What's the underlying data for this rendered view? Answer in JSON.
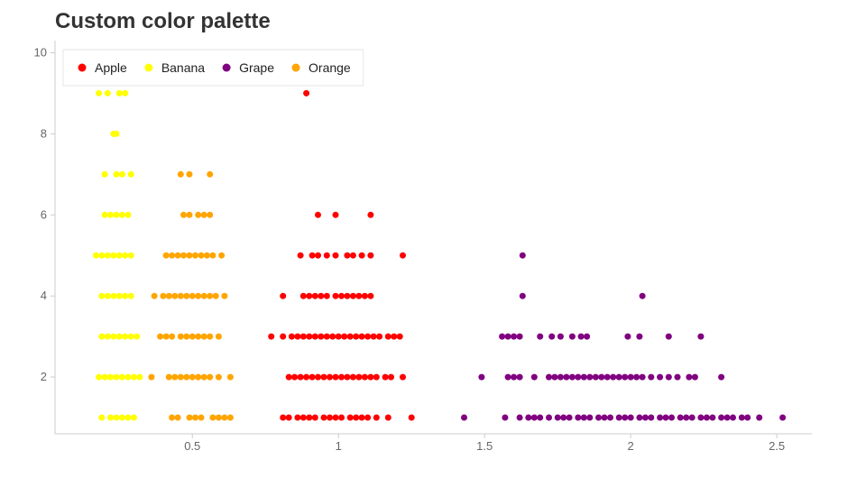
{
  "chart_data": {
    "type": "scatter",
    "title": "Custom color palette",
    "xlabel": "",
    "ylabel": "",
    "xlim": [
      0.03,
      2.62
    ],
    "ylim": [
      0.6,
      10.3
    ],
    "x_ticks": [
      0.5,
      1,
      1.5,
      2,
      2.5
    ],
    "x_tick_labels": [
      "0.5",
      "1",
      "1.5",
      "2",
      "2.5"
    ],
    "y_ticks": [
      2,
      4,
      6,
      8,
      10
    ],
    "y_tick_labels": [
      "2",
      "4",
      "6",
      "8",
      "10"
    ],
    "grid": false,
    "legend_position": "top-left",
    "series": [
      {
        "name": "Apple",
        "color": "#ff0000",
        "points": [
          [
            0.89,
            9
          ],
          [
            0.93,
            6
          ],
          [
            0.99,
            6
          ],
          [
            1.11,
            6
          ],
          [
            0.87,
            5
          ],
          [
            0.91,
            5
          ],
          [
            0.93,
            5
          ],
          [
            0.96,
            5
          ],
          [
            0.99,
            5
          ],
          [
            1.03,
            5
          ],
          [
            1.05,
            5
          ],
          [
            1.08,
            5
          ],
          [
            1.11,
            5
          ],
          [
            1.22,
            5
          ],
          [
            0.81,
            4
          ],
          [
            0.88,
            4
          ],
          [
            0.9,
            4
          ],
          [
            0.92,
            4
          ],
          [
            0.94,
            4
          ],
          [
            0.96,
            4
          ],
          [
            0.99,
            4
          ],
          [
            1.01,
            4
          ],
          [
            1.03,
            4
          ],
          [
            1.05,
            4
          ],
          [
            1.07,
            4
          ],
          [
            1.09,
            4
          ],
          [
            1.11,
            4
          ],
          [
            0.77,
            3
          ],
          [
            0.81,
            3
          ],
          [
            0.84,
            3
          ],
          [
            0.86,
            3
          ],
          [
            0.88,
            3
          ],
          [
            0.9,
            3
          ],
          [
            0.92,
            3
          ],
          [
            0.94,
            3
          ],
          [
            0.96,
            3
          ],
          [
            0.98,
            3
          ],
          [
            1.0,
            3
          ],
          [
            1.02,
            3
          ],
          [
            1.04,
            3
          ],
          [
            1.06,
            3
          ],
          [
            1.08,
            3
          ],
          [
            1.1,
            3
          ],
          [
            1.12,
            3
          ],
          [
            1.14,
            3
          ],
          [
            1.17,
            3
          ],
          [
            1.19,
            3
          ],
          [
            1.21,
            3
          ],
          [
            0.83,
            2
          ],
          [
            0.85,
            2
          ],
          [
            0.87,
            2
          ],
          [
            0.89,
            2
          ],
          [
            0.91,
            2
          ],
          [
            0.93,
            2
          ],
          [
            0.95,
            2
          ],
          [
            0.97,
            2
          ],
          [
            0.99,
            2
          ],
          [
            1.01,
            2
          ],
          [
            1.03,
            2
          ],
          [
            1.05,
            2
          ],
          [
            1.07,
            2
          ],
          [
            1.09,
            2
          ],
          [
            1.11,
            2
          ],
          [
            1.13,
            2
          ],
          [
            1.16,
            2
          ],
          [
            1.18,
            2
          ],
          [
            1.22,
            2
          ],
          [
            0.81,
            1
          ],
          [
            0.83,
            1
          ],
          [
            0.86,
            1
          ],
          [
            0.88,
            1
          ],
          [
            0.9,
            1
          ],
          [
            0.92,
            1
          ],
          [
            0.95,
            1
          ],
          [
            0.97,
            1
          ],
          [
            0.99,
            1
          ],
          [
            1.01,
            1
          ],
          [
            1.04,
            1
          ],
          [
            1.06,
            1
          ],
          [
            1.08,
            1
          ],
          [
            1.1,
            1
          ],
          [
            1.13,
            1
          ],
          [
            1.17,
            1
          ],
          [
            1.25,
            1
          ]
        ]
      },
      {
        "name": "Banana",
        "color": "#ffff00",
        "points": [
          [
            0.18,
            9
          ],
          [
            0.21,
            9
          ],
          [
            0.25,
            9
          ],
          [
            0.27,
            9
          ],
          [
            0.23,
            8
          ],
          [
            0.24,
            8
          ],
          [
            0.2,
            7
          ],
          [
            0.24,
            7
          ],
          [
            0.26,
            7
          ],
          [
            0.29,
            7
          ],
          [
            0.2,
            6
          ],
          [
            0.22,
            6
          ],
          [
            0.24,
            6
          ],
          [
            0.26,
            6
          ],
          [
            0.28,
            6
          ],
          [
            0.17,
            5
          ],
          [
            0.19,
            5
          ],
          [
            0.21,
            5
          ],
          [
            0.23,
            5
          ],
          [
            0.25,
            5
          ],
          [
            0.27,
            5
          ],
          [
            0.29,
            5
          ],
          [
            0.19,
            4
          ],
          [
            0.21,
            4
          ],
          [
            0.23,
            4
          ],
          [
            0.25,
            4
          ],
          [
            0.27,
            4
          ],
          [
            0.29,
            4
          ],
          [
            0.19,
            3
          ],
          [
            0.21,
            3
          ],
          [
            0.23,
            3
          ],
          [
            0.25,
            3
          ],
          [
            0.27,
            3
          ],
          [
            0.29,
            3
          ],
          [
            0.31,
            3
          ],
          [
            0.18,
            2
          ],
          [
            0.2,
            2
          ],
          [
            0.22,
            2
          ],
          [
            0.24,
            2
          ],
          [
            0.26,
            2
          ],
          [
            0.28,
            2
          ],
          [
            0.3,
            2
          ],
          [
            0.32,
            2
          ],
          [
            0.19,
            1
          ],
          [
            0.22,
            1
          ],
          [
            0.24,
            1
          ],
          [
            0.26,
            1
          ],
          [
            0.28,
            1
          ],
          [
            0.3,
            1
          ]
        ]
      },
      {
        "name": "Grape",
        "color": "#800080",
        "points": [
          [
            1.63,
            5
          ],
          [
            1.63,
            4
          ],
          [
            2.04,
            4
          ],
          [
            1.56,
            3
          ],
          [
            1.58,
            3
          ],
          [
            1.6,
            3
          ],
          [
            1.62,
            3
          ],
          [
            1.69,
            3
          ],
          [
            1.73,
            3
          ],
          [
            1.76,
            3
          ],
          [
            1.8,
            3
          ],
          [
            1.83,
            3
          ],
          [
            1.85,
            3
          ],
          [
            1.99,
            3
          ],
          [
            2.03,
            3
          ],
          [
            2.13,
            3
          ],
          [
            2.24,
            3
          ],
          [
            1.49,
            2
          ],
          [
            1.58,
            2
          ],
          [
            1.6,
            2
          ],
          [
            1.62,
            2
          ],
          [
            1.67,
            2
          ],
          [
            1.72,
            2
          ],
          [
            1.74,
            2
          ],
          [
            1.76,
            2
          ],
          [
            1.78,
            2
          ],
          [
            1.8,
            2
          ],
          [
            1.82,
            2
          ],
          [
            1.84,
            2
          ],
          [
            1.86,
            2
          ],
          [
            1.88,
            2
          ],
          [
            1.9,
            2
          ],
          [
            1.92,
            2
          ],
          [
            1.94,
            2
          ],
          [
            1.96,
            2
          ],
          [
            1.98,
            2
          ],
          [
            2.0,
            2
          ],
          [
            2.02,
            2
          ],
          [
            2.04,
            2
          ],
          [
            2.07,
            2
          ],
          [
            2.1,
            2
          ],
          [
            2.13,
            2
          ],
          [
            2.16,
            2
          ],
          [
            2.2,
            2
          ],
          [
            2.22,
            2
          ],
          [
            2.31,
            2
          ],
          [
            1.43,
            1
          ],
          [
            1.57,
            1
          ],
          [
            1.62,
            1
          ],
          [
            1.65,
            1
          ],
          [
            1.67,
            1
          ],
          [
            1.69,
            1
          ],
          [
            1.72,
            1
          ],
          [
            1.75,
            1
          ],
          [
            1.77,
            1
          ],
          [
            1.79,
            1
          ],
          [
            1.82,
            1
          ],
          [
            1.84,
            1
          ],
          [
            1.86,
            1
          ],
          [
            1.89,
            1
          ],
          [
            1.91,
            1
          ],
          [
            1.93,
            1
          ],
          [
            1.96,
            1
          ],
          [
            1.98,
            1
          ],
          [
            2.0,
            1
          ],
          [
            2.03,
            1
          ],
          [
            2.05,
            1
          ],
          [
            2.07,
            1
          ],
          [
            2.1,
            1
          ],
          [
            2.12,
            1
          ],
          [
            2.14,
            1
          ],
          [
            2.17,
            1
          ],
          [
            2.19,
            1
          ],
          [
            2.21,
            1
          ],
          [
            2.24,
            1
          ],
          [
            2.26,
            1
          ],
          [
            2.28,
            1
          ],
          [
            2.31,
            1
          ],
          [
            2.33,
            1
          ],
          [
            2.35,
            1
          ],
          [
            2.38,
            1
          ],
          [
            2.4,
            1
          ],
          [
            2.44,
            1
          ],
          [
            2.52,
            1
          ]
        ]
      },
      {
        "name": "Orange",
        "color": "#ffa500",
        "points": [
          [
            0.46,
            7
          ],
          [
            0.49,
            7
          ],
          [
            0.56,
            7
          ],
          [
            0.47,
            6
          ],
          [
            0.49,
            6
          ],
          [
            0.52,
            6
          ],
          [
            0.54,
            6
          ],
          [
            0.56,
            6
          ],
          [
            0.41,
            5
          ],
          [
            0.43,
            5
          ],
          [
            0.45,
            5
          ],
          [
            0.47,
            5
          ],
          [
            0.49,
            5
          ],
          [
            0.51,
            5
          ],
          [
            0.53,
            5
          ],
          [
            0.55,
            5
          ],
          [
            0.57,
            5
          ],
          [
            0.6,
            5
          ],
          [
            0.37,
            4
          ],
          [
            0.4,
            4
          ],
          [
            0.42,
            4
          ],
          [
            0.44,
            4
          ],
          [
            0.46,
            4
          ],
          [
            0.48,
            4
          ],
          [
            0.5,
            4
          ],
          [
            0.52,
            4
          ],
          [
            0.54,
            4
          ],
          [
            0.56,
            4
          ],
          [
            0.58,
            4
          ],
          [
            0.61,
            4
          ],
          [
            0.39,
            3
          ],
          [
            0.41,
            3
          ],
          [
            0.43,
            3
          ],
          [
            0.46,
            3
          ],
          [
            0.48,
            3
          ],
          [
            0.5,
            3
          ],
          [
            0.52,
            3
          ],
          [
            0.54,
            3
          ],
          [
            0.56,
            3
          ],
          [
            0.59,
            3
          ],
          [
            0.36,
            2
          ],
          [
            0.42,
            2
          ],
          [
            0.44,
            2
          ],
          [
            0.46,
            2
          ],
          [
            0.48,
            2
          ],
          [
            0.5,
            2
          ],
          [
            0.52,
            2
          ],
          [
            0.54,
            2
          ],
          [
            0.56,
            2
          ],
          [
            0.59,
            2
          ],
          [
            0.63,
            2
          ],
          [
            0.43,
            1
          ],
          [
            0.45,
            1
          ],
          [
            0.49,
            1
          ],
          [
            0.51,
            1
          ],
          [
            0.53,
            1
          ],
          [
            0.57,
            1
          ],
          [
            0.59,
            1
          ],
          [
            0.61,
            1
          ],
          [
            0.63,
            1
          ]
        ]
      }
    ]
  }
}
